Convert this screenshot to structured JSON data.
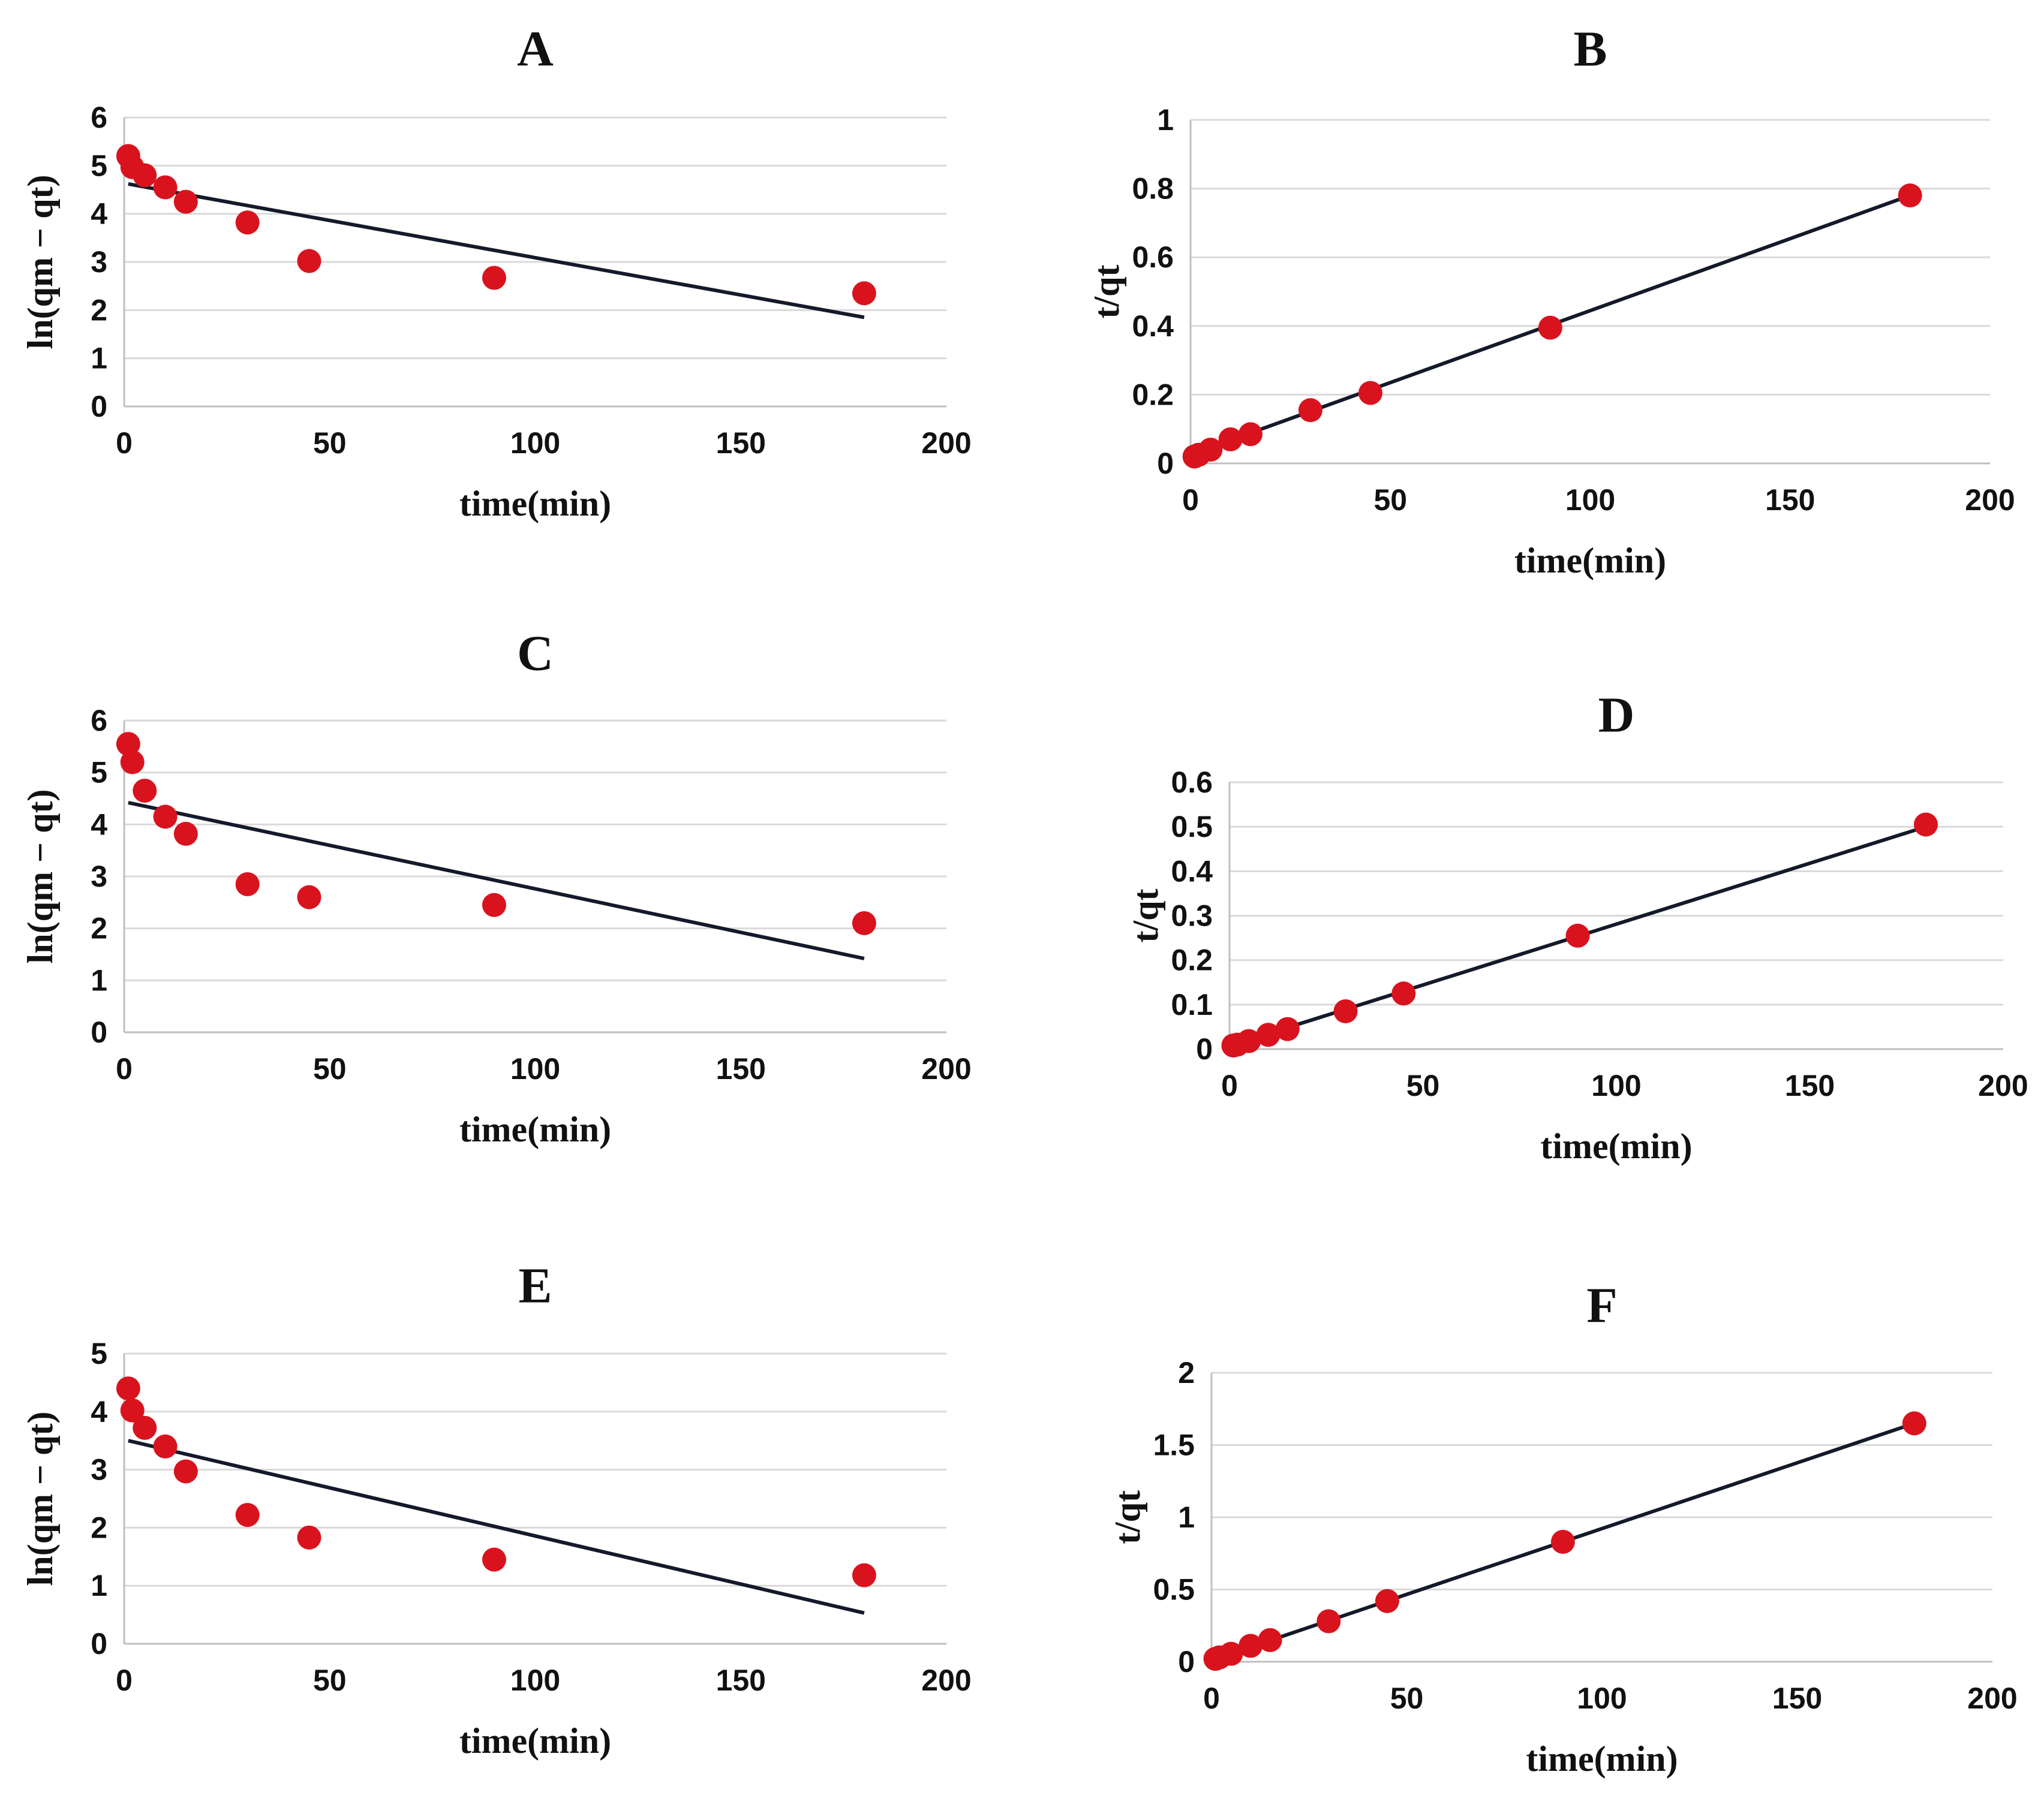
{
  "colors": {
    "points": "#d9131e",
    "fit_line": "#141a2a",
    "grid": "#d9d9d9"
  },
  "chart_data": [
    {
      "id": "A",
      "type": "scatter",
      "title": "A",
      "xlabel": "time(min)",
      "ylabel": "ln(qm − qt)",
      "xlim": [
        0,
        200
      ],
      "ylim": [
        0,
        6
      ],
      "xticks": [
        "0",
        "50",
        "100",
        "150",
        "200"
      ],
      "yticks": [
        "0",
        "1",
        "2",
        "3",
        "4",
        "5",
        "6"
      ],
      "grid": true,
      "legend": "none",
      "x": [
        1,
        2,
        5,
        10,
        15,
        30,
        45,
        90,
        180
      ],
      "y": [
        5.2,
        4.97,
        4.8,
        4.55,
        4.25,
        3.82,
        3.02,
        2.67,
        2.35
      ],
      "fit": {
        "x": [
          1,
          180
        ],
        "y": [
          4.62,
          1.85
        ]
      }
    },
    {
      "id": "B",
      "type": "scatter",
      "title": "B",
      "xlabel": "time(min)",
      "ylabel": "t/qt",
      "xlim": [
        0,
        200
      ],
      "ylim": [
        0,
        1
      ],
      "xticks": [
        "0",
        "50",
        "100",
        "150",
        "200"
      ],
      "yticks": [
        "0",
        "0.2",
        "0.4",
        "0.6",
        "0.8",
        "1"
      ],
      "grid": true,
      "legend": "none",
      "x": [
        1,
        2,
        5,
        10,
        15,
        30,
        45,
        90,
        180
      ],
      "y": [
        0.02,
        0.025,
        0.04,
        0.07,
        0.085,
        0.155,
        0.205,
        0.395,
        0.78
      ],
      "fit": {
        "x": [
          1,
          180
        ],
        "y": [
          0.03,
          0.78
        ]
      }
    },
    {
      "id": "C",
      "type": "scatter",
      "title": "C",
      "xlabel": "time(min)",
      "ylabel": "ln(qm − qt)",
      "xlim": [
        0,
        200
      ],
      "ylim": [
        0,
        6
      ],
      "xticks": [
        "0",
        "50",
        "100",
        "150",
        "200"
      ],
      "yticks": [
        "0",
        "1",
        "2",
        "3",
        "4",
        "5",
        "6"
      ],
      "grid": true,
      "legend": "none",
      "x": [
        1,
        2,
        5,
        10,
        15,
        30,
        45,
        90,
        180
      ],
      "y": [
        5.55,
        5.2,
        4.65,
        4.15,
        3.82,
        2.85,
        2.6,
        2.45,
        2.1
      ],
      "fit": {
        "x": [
          1,
          180
        ],
        "y": [
          4.42,
          1.42
        ]
      }
    },
    {
      "id": "D",
      "type": "scatter",
      "title": "D",
      "xlabel": "time(min)",
      "ylabel": "t/qt",
      "xlim": [
        0,
        200
      ],
      "ylim": [
        0,
        0.6
      ],
      "xticks": [
        "0",
        "50",
        "100",
        "150",
        "200"
      ],
      "yticks": [
        "0",
        "0.1",
        "0.2",
        "0.3",
        "0.4",
        "0.5",
        "0.6"
      ],
      "grid": true,
      "legend": "none",
      "x": [
        1,
        2,
        5,
        10,
        15,
        30,
        45,
        90,
        180
      ],
      "y": [
        0.008,
        0.01,
        0.018,
        0.032,
        0.045,
        0.085,
        0.125,
        0.255,
        0.505
      ],
      "fit": {
        "x": [
          1,
          180
        ],
        "y": [
          0.01,
          0.5
        ]
      }
    },
    {
      "id": "E",
      "type": "scatter",
      "title": "E",
      "xlabel": "time(min)",
      "ylabel": "ln(qm − qt)",
      "xlim": [
        0,
        200
      ],
      "ylim": [
        0,
        5
      ],
      "xticks": [
        "0",
        "50",
        "100",
        "150",
        "200"
      ],
      "yticks": [
        "0",
        "1",
        "2",
        "3",
        "4",
        "5"
      ],
      "grid": true,
      "legend": "none",
      "x": [
        1,
        2,
        5,
        10,
        15,
        30,
        45,
        90,
        180
      ],
      "y": [
        4.4,
        4.02,
        3.72,
        3.4,
        2.97,
        2.22,
        1.83,
        1.45,
        1.18
      ],
      "fit": {
        "x": [
          1,
          180
        ],
        "y": [
          3.5,
          0.53
        ]
      }
    },
    {
      "id": "F",
      "type": "scatter",
      "title": "F",
      "xlabel": "time(min)",
      "ylabel": "t/qt",
      "xlim": [
        0,
        200
      ],
      "ylim": [
        0,
        2
      ],
      "xticks": [
        "0",
        "50",
        "100",
        "150",
        "200"
      ],
      "yticks": [
        "0",
        "0.5",
        "1",
        "1.5",
        "2"
      ],
      "grid": true,
      "legend": "none",
      "x": [
        1,
        2,
        5,
        10,
        15,
        30,
        45,
        90,
        180
      ],
      "y": [
        0.02,
        0.03,
        0.055,
        0.11,
        0.15,
        0.28,
        0.42,
        0.83,
        1.65
      ],
      "fit": {
        "x": [
          1,
          180
        ],
        "y": [
          0.02,
          1.65
        ]
      }
    }
  ]
}
